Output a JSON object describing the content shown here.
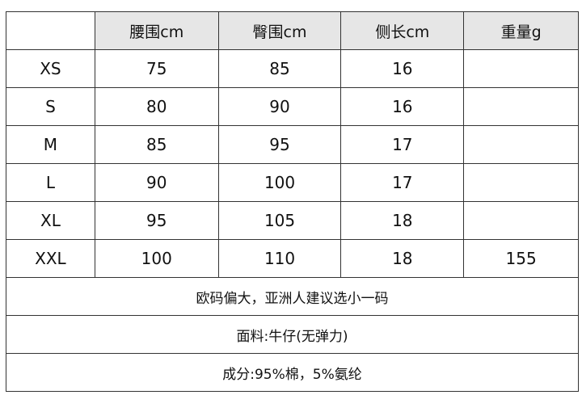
{
  "headers": [
    "",
    "腰围cm",
    "臀围cm",
    "侧长cm",
    "重量g"
  ],
  "rows": [
    [
      "XS",
      "75",
      "85",
      "16",
      ""
    ],
    [
      "S",
      "80",
      "90",
      "16",
      ""
    ],
    [
      "M",
      "85",
      "95",
      "17",
      ""
    ],
    [
      "L",
      "90",
      "100",
      "17",
      ""
    ],
    [
      "XL",
      "95",
      "105",
      "18",
      ""
    ],
    [
      "XXL",
      "100",
      "110",
      "18",
      "155"
    ]
  ],
  "notes": [
    "欧码偏大，亚洲人建议选小一码",
    "面料:牛仔(无弹力)",
    "成分:95%棉，5%氨纶"
  ],
  "colors": {
    "header_bg": "#e6e6e6",
    "border": "#333333"
  }
}
